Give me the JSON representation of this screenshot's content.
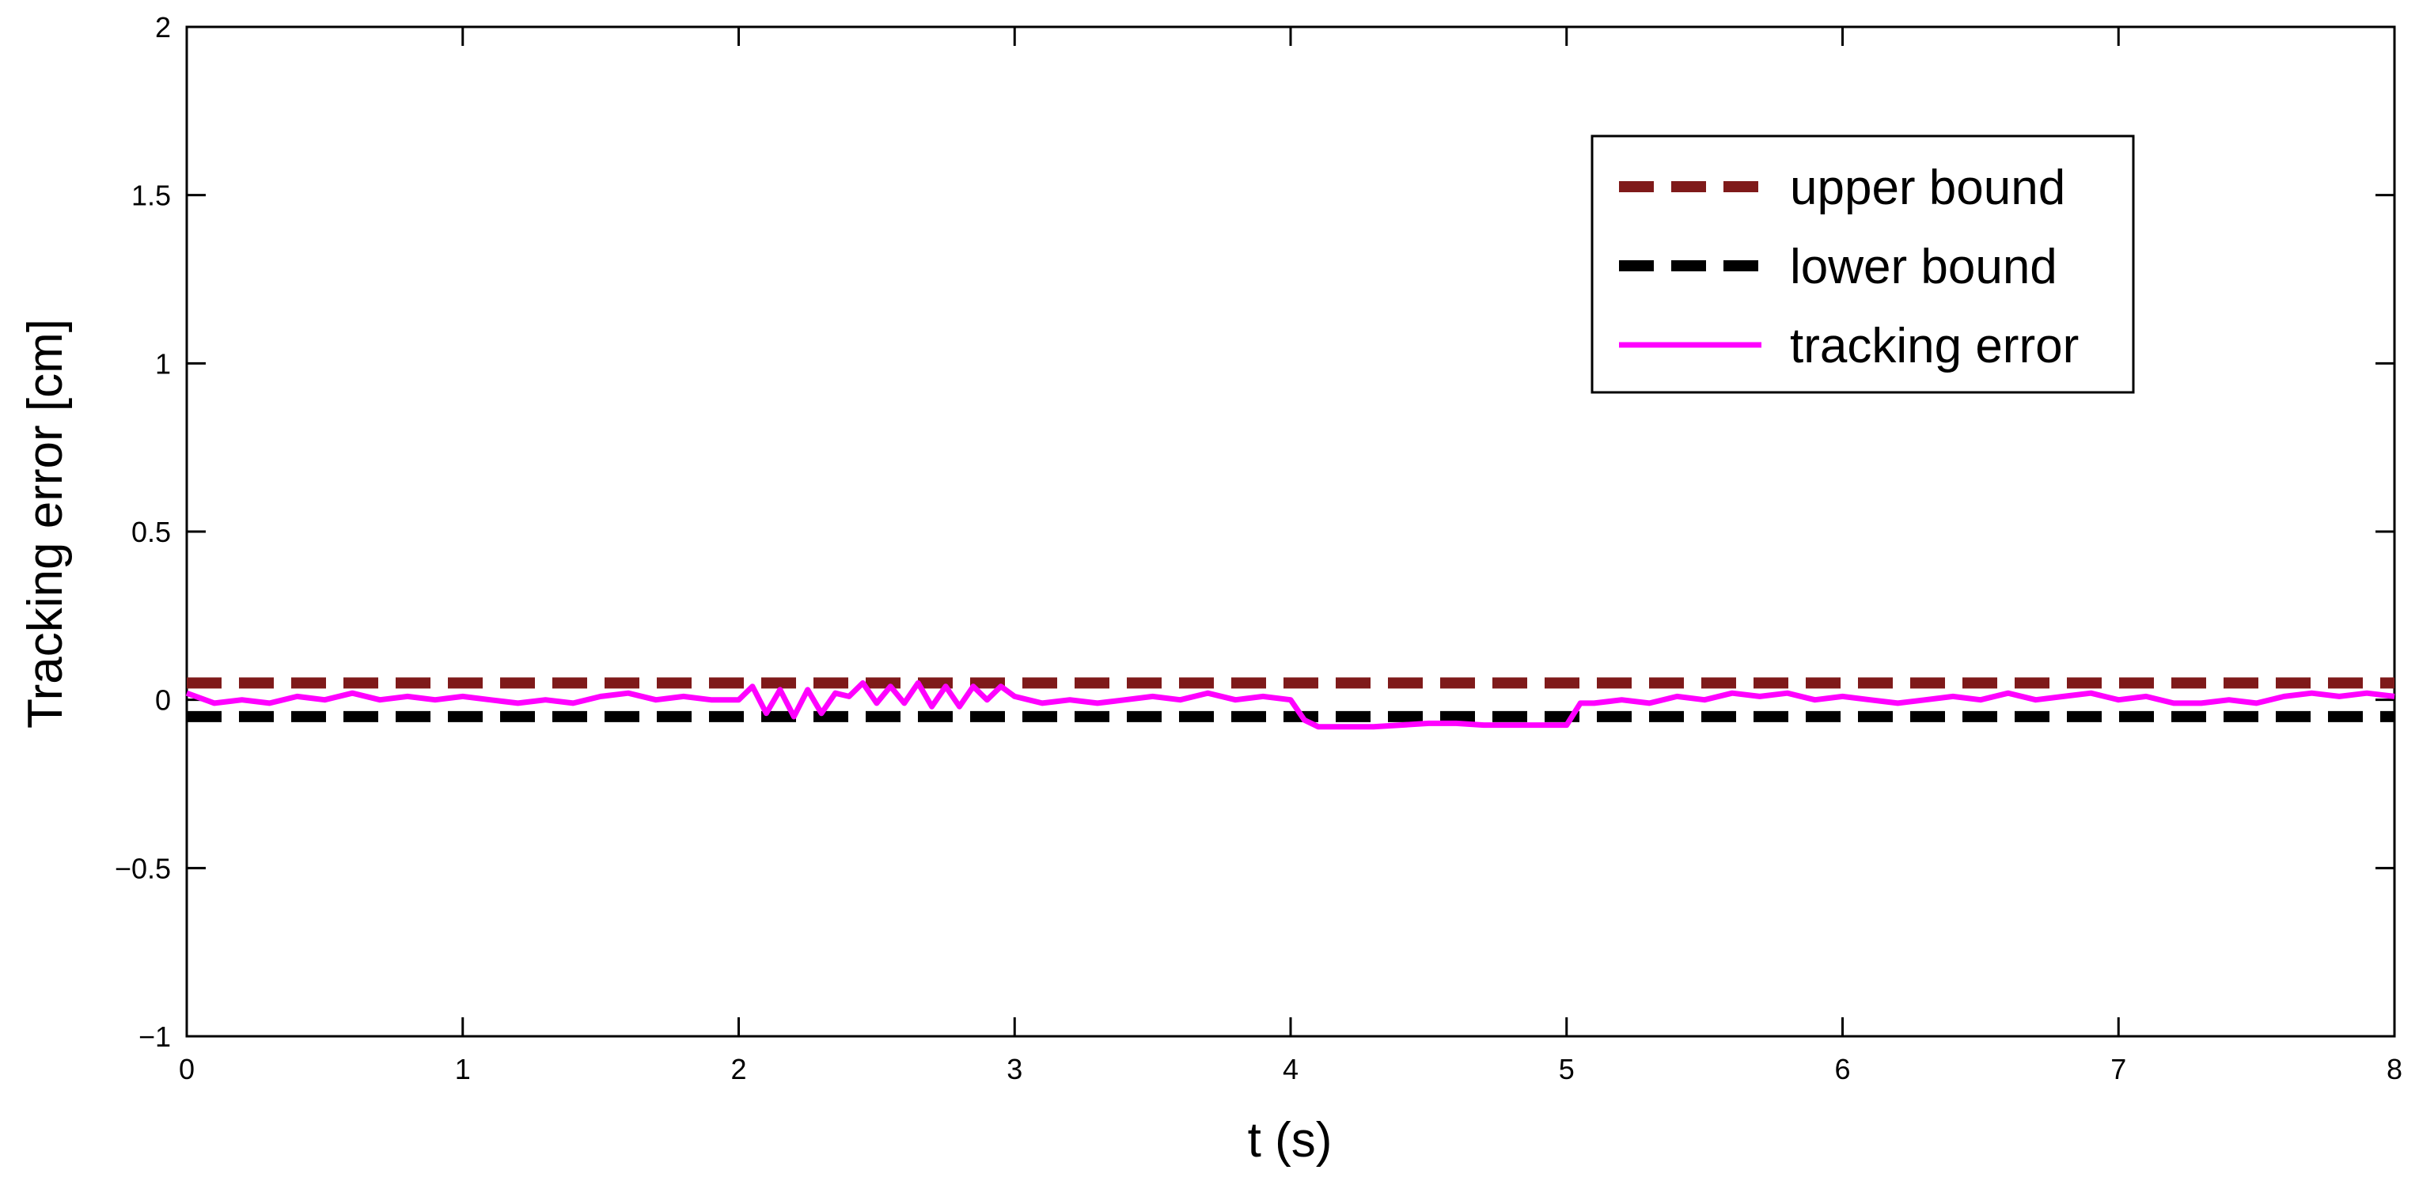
{
  "chart_data": {
    "type": "line",
    "title": "",
    "xlabel": "t (s)",
    "ylabel": "Tracking error [cm]",
    "xlim": [
      0,
      8
    ],
    "ylim": [
      -1,
      2
    ],
    "xticks": [
      0,
      1,
      2,
      3,
      4,
      5,
      6,
      7,
      8
    ],
    "xtick_labels": [
      "0",
      "1",
      "2",
      "3",
      "4",
      "5",
      "6",
      "7",
      "8"
    ],
    "yticks": [
      -1,
      -0.5,
      0,
      0.5,
      1,
      1.5,
      2
    ],
    "ytick_labels": [
      "−1",
      "−0.5",
      "0",
      "0.5",
      "1",
      "1.5",
      "2"
    ],
    "grid": false,
    "legend_position": "top-right",
    "series": [
      {
        "name": "upper bound",
        "style": "dashed",
        "color": "#7f1a1a",
        "x": [
          0,
          8
        ],
        "y": [
          0.05,
          0.05
        ]
      },
      {
        "name": "lower bound",
        "style": "dashed",
        "color": "#000000",
        "x": [
          0,
          8
        ],
        "y": [
          -0.05,
          -0.05
        ]
      },
      {
        "name": "tracking error",
        "style": "solid",
        "color": "#ff00ff",
        "x": [
          0,
          0.1,
          0.2,
          0.3,
          0.4,
          0.5,
          0.6,
          0.7,
          0.8,
          0.9,
          1.0,
          1.1,
          1.2,
          1.3,
          1.4,
          1.5,
          1.6,
          1.7,
          1.8,
          1.9,
          2.0,
          2.05,
          2.1,
          2.15,
          2.2,
          2.25,
          2.3,
          2.35,
          2.4,
          2.45,
          2.5,
          2.55,
          2.6,
          2.65,
          2.7,
          2.75,
          2.8,
          2.85,
          2.9,
          2.95,
          3.0,
          3.1,
          3.2,
          3.3,
          3.4,
          3.5,
          3.6,
          3.7,
          3.8,
          3.9,
          4.0,
          4.05,
          4.1,
          4.2,
          4.3,
          4.4,
          4.5,
          4.6,
          4.7,
          4.8,
          4.9,
          4.95,
          5.0,
          5.05,
          5.1,
          5.2,
          5.3,
          5.4,
          5.5,
          5.6,
          5.7,
          5.8,
          5.9,
          6.0,
          6.1,
          6.2,
          6.3,
          6.4,
          6.5,
          6.6,
          6.7,
          6.8,
          6.9,
          7.0,
          7.1,
          7.2,
          7.3,
          7.4,
          7.5,
          7.6,
          7.7,
          7.8,
          7.9,
          8.0
        ],
        "y": [
          0.02,
          -0.01,
          0.0,
          -0.01,
          0.01,
          0.0,
          0.02,
          0.0,
          0.01,
          0.0,
          0.01,
          0.0,
          -0.01,
          0.0,
          -0.01,
          0.01,
          0.02,
          0.0,
          0.01,
          0.0,
          0.0,
          0.04,
          -0.04,
          0.03,
          -0.05,
          0.03,
          -0.04,
          0.02,
          0.01,
          0.05,
          -0.01,
          0.04,
          -0.01,
          0.05,
          -0.02,
          0.04,
          -0.02,
          0.04,
          0.0,
          0.04,
          0.01,
          -0.01,
          0.0,
          -0.01,
          0.0,
          0.01,
          0.0,
          0.02,
          0.0,
          0.01,
          0.0,
          -0.06,
          -0.08,
          -0.08,
          -0.08,
          -0.075,
          -0.07,
          -0.07,
          -0.075,
          -0.075,
          -0.075,
          -0.075,
          -0.075,
          -0.01,
          -0.01,
          0.0,
          -0.01,
          0.01,
          0.0,
          0.02,
          0.01,
          0.02,
          0.0,
          0.01,
          0.0,
          -0.01,
          0.0,
          0.01,
          0.0,
          0.02,
          0.0,
          0.01,
          0.02,
          0.0,
          0.01,
          -0.01,
          -0.01,
          0.0,
          -0.01,
          0.01,
          0.02,
          0.01,
          0.02,
          0.01
        ]
      }
    ]
  }
}
